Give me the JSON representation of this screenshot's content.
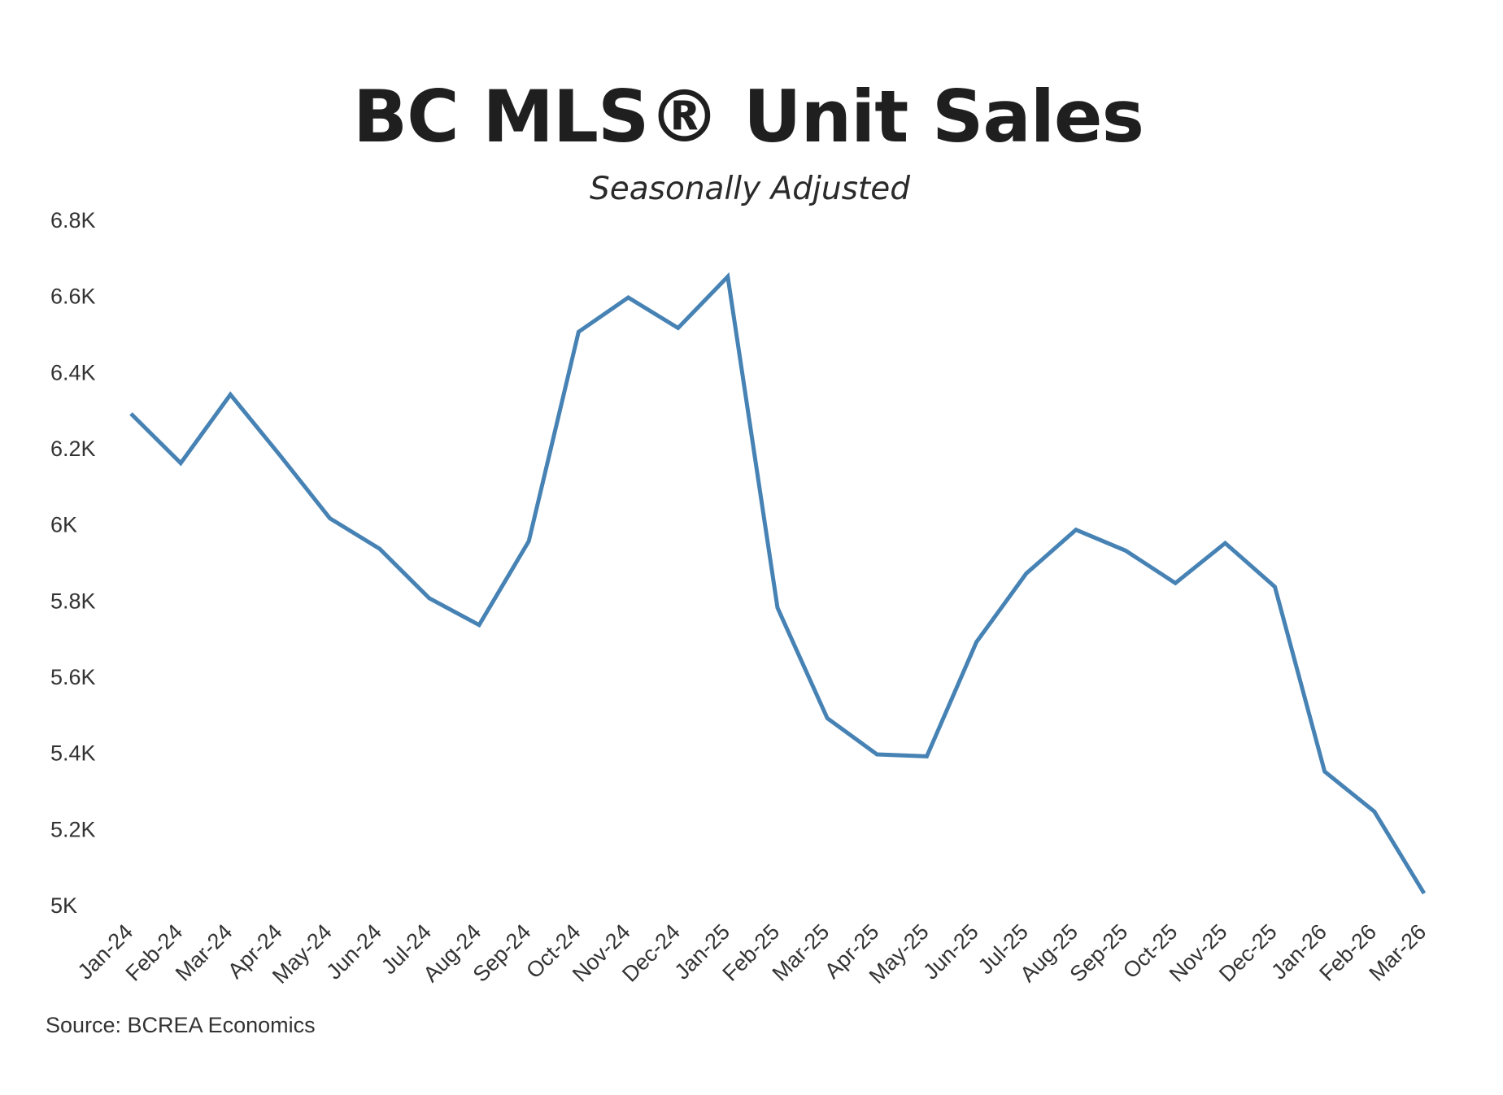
{
  "chart_data": {
    "type": "line",
    "title": "BC MLS® Unit Sales",
    "subtitle": "Seasonally Adjusted",
    "xlabel": "",
    "ylabel": "",
    "x": [
      "Jan-24",
      "Feb-24",
      "Mar-24",
      "Apr-24",
      "May-24",
      "Jun-24",
      "Jul-24",
      "Aug-24",
      "Sep-24",
      "Oct-24",
      "Nov-24",
      "Dec-24",
      "Jan-25",
      "Feb-25",
      "Mar-25",
      "Apr-25",
      "May-25",
      "Jun-25",
      "Jul-25",
      "Aug-25",
      "Sep-25",
      "Oct-25",
      "Nov-25",
      "Dec-25",
      "Jan-26",
      "Feb-26",
      "Mar-26"
    ],
    "series": [
      {
        "values": [
          6290,
          6160,
          6340,
          6180,
          6015,
          5935,
          5805,
          5735,
          5955,
          6505,
          6595,
          6515,
          6650,
          5780,
          5490,
          5395,
          5390,
          5690,
          5870,
          5985,
          5930,
          5845,
          5950,
          5835,
          5350,
          5245,
          5030
        ],
        "color": "#4682b4"
      }
    ],
    "ylim": [
      5000,
      6800
    ],
    "yticks": [
      5000,
      5200,
      5400,
      5600,
      5800,
      6000,
      6200,
      6400,
      6600,
      6800
    ],
    "ytick_labels": [
      "5K",
      "5.2K",
      "5.4K",
      "5.6K",
      "5.8K",
      "6K",
      "6.2K",
      "6.4K",
      "6.6K",
      "6.8K"
    ],
    "grid": false,
    "legend": "none",
    "source": "Source: BCREA Economics"
  }
}
